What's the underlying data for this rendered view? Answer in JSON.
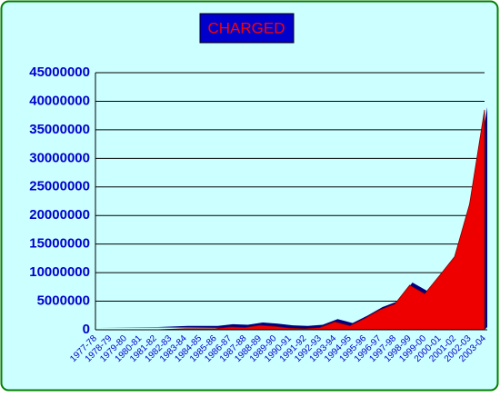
{
  "chart_data": {
    "type": "area",
    "title": "CHARGED",
    "categories": [
      "1977-78",
      "1978-79",
      "1979-80",
      "1980-81",
      "1981-82",
      "1982-83",
      "1983-84",
      "1984-85",
      "1985-86",
      "1986-87",
      "1987-88",
      "1988-89",
      "1989-90",
      "1990-91",
      "1991-92",
      "1992-93",
      "1993-94",
      "1994-95",
      "1995-96",
      "1996-97",
      "1997-98",
      "1998-99",
      "1999-00",
      "2000-01",
      "2001-02",
      "2002-03",
      "2003-04"
    ],
    "values": [
      0,
      0,
      0,
      0,
      0,
      100000,
      200000,
      200000,
      200000,
      500000,
      400000,
      800000,
      600000,
      300000,
      200000,
      400000,
      1400000,
      700000,
      2000000,
      3500000,
      4500000,
      7800000,
      6300000,
      9500000,
      12800000,
      22000000,
      38500000
    ],
    "color": "#ee0000",
    "ylim": [
      0,
      45000000
    ],
    "yticks": [
      0,
      5000000,
      10000000,
      15000000,
      20000000,
      25000000,
      30000000,
      35000000,
      40000000,
      45000000
    ],
    "grid": true
  }
}
